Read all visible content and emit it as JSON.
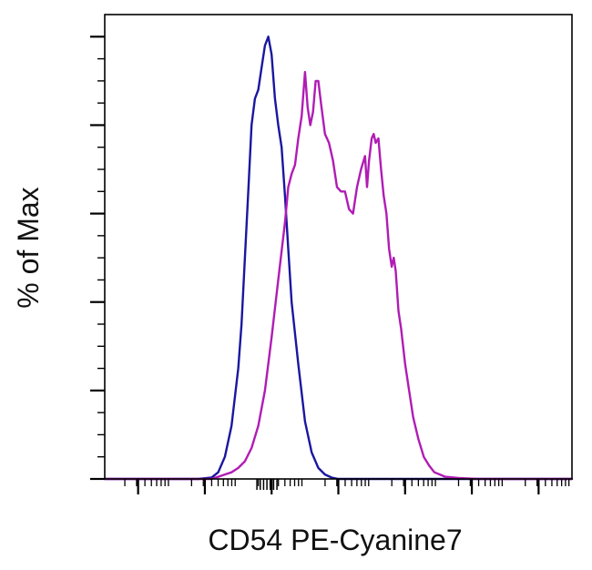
{
  "chart_data": {
    "type": "line",
    "title": "",
    "xlabel": "CD54 PE-Cyanine7",
    "ylabel": "% of Max",
    "x_scale": "log",
    "xlim": [
      -1,
      6.0
    ],
    "ylim": [
      0,
      105
    ],
    "major_x_ticks": [
      -0.5,
      0.5,
      1.5,
      2.5,
      3.5,
      4.5,
      5.5
    ],
    "x_tick_labels": [],
    "y_tick_labels": [],
    "grid": false,
    "legend": "none",
    "series": [
      {
        "color": "#1a17a0",
        "points": [
          [
            -1.0,
            0
          ],
          [
            0.4,
            0
          ],
          [
            0.6,
            0.3
          ],
          [
            0.7,
            1.5
          ],
          [
            0.8,
            5
          ],
          [
            0.9,
            12
          ],
          [
            1.0,
            25
          ],
          [
            1.05,
            35
          ],
          [
            1.1,
            50
          ],
          [
            1.15,
            65
          ],
          [
            1.2,
            80
          ],
          [
            1.25,
            86
          ],
          [
            1.3,
            88
          ],
          [
            1.35,
            93
          ],
          [
            1.4,
            98
          ],
          [
            1.45,
            100
          ],
          [
            1.5,
            96
          ],
          [
            1.55,
            86
          ],
          [
            1.6,
            80
          ],
          [
            1.65,
            75
          ],
          [
            1.7,
            64
          ],
          [
            1.75,
            52
          ],
          [
            1.8,
            40
          ],
          [
            1.9,
            26
          ],
          [
            2.0,
            13
          ],
          [
            2.1,
            6
          ],
          [
            2.2,
            2.5
          ],
          [
            2.3,
            1
          ],
          [
            2.4,
            0.3
          ],
          [
            2.5,
            0
          ],
          [
            6.0,
            0
          ]
        ]
      },
      {
        "color": "#b01cb4",
        "points": [
          [
            -1.0,
            0
          ],
          [
            0.6,
            0
          ],
          [
            0.7,
            0.5
          ],
          [
            0.8,
            1
          ],
          [
            0.9,
            1.5
          ],
          [
            1.0,
            2.5
          ],
          [
            1.1,
            4
          ],
          [
            1.2,
            7
          ],
          [
            1.3,
            12
          ],
          [
            1.4,
            20
          ],
          [
            1.5,
            32
          ],
          [
            1.6,
            45
          ],
          [
            1.7,
            58
          ],
          [
            1.75,
            66
          ],
          [
            1.8,
            69
          ],
          [
            1.85,
            71
          ],
          [
            1.9,
            77
          ],
          [
            1.95,
            82
          ],
          [
            2.0,
            92
          ],
          [
            2.04,
            84
          ],
          [
            2.08,
            80
          ],
          [
            2.12,
            83
          ],
          [
            2.16,
            90
          ],
          [
            2.2,
            90
          ],
          [
            2.24,
            85
          ],
          [
            2.3,
            78
          ],
          [
            2.36,
            76
          ],
          [
            2.42,
            72
          ],
          [
            2.48,
            66
          ],
          [
            2.54,
            65
          ],
          [
            2.6,
            65
          ],
          [
            2.66,
            61
          ],
          [
            2.72,
            60
          ],
          [
            2.78,
            66
          ],
          [
            2.84,
            70
          ],
          [
            2.9,
            73
          ],
          [
            2.93,
            66
          ],
          [
            2.96,
            72
          ],
          [
            3.0,
            77
          ],
          [
            3.03,
            78
          ],
          [
            3.06,
            76
          ],
          [
            3.1,
            77
          ],
          [
            3.14,
            70
          ],
          [
            3.18,
            64
          ],
          [
            3.22,
            60
          ],
          [
            3.26,
            52
          ],
          [
            3.3,
            48
          ],
          [
            3.33,
            50
          ],
          [
            3.36,
            47
          ],
          [
            3.4,
            38
          ],
          [
            3.44,
            34
          ],
          [
            3.5,
            26
          ],
          [
            3.56,
            20
          ],
          [
            3.62,
            14
          ],
          [
            3.7,
            9
          ],
          [
            3.78,
            5
          ],
          [
            3.86,
            3
          ],
          [
            3.94,
            1.5
          ],
          [
            4.02,
            1
          ],
          [
            4.1,
            0.5
          ],
          [
            4.3,
            0.2
          ],
          [
            4.6,
            0
          ],
          [
            6.0,
            0
          ]
        ]
      }
    ]
  }
}
